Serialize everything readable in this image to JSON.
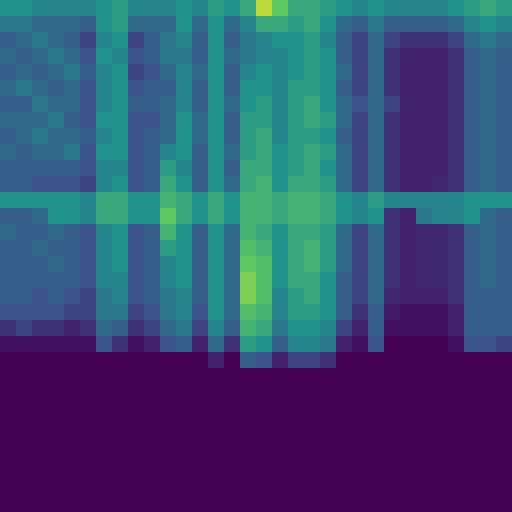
{
  "chart_data": {
    "type": "heatmap",
    "tick_labels": false,
    "zlim": [
      0,
      1
    ],
    "cells": [
      [
        0.5,
        0.5,
        0.45,
        0.45,
        0.45,
        0.45,
        0.5,
        0.55,
        0.45,
        0.45,
        0.45,
        0.5,
        0.45,
        0.55,
        0.5,
        0.6,
        0.9,
        0.75,
        0.6,
        0.6,
        0.55,
        0.5,
        0.45,
        0.5,
        0.45,
        0.45,
        0.45,
        0.45,
        0.5,
        0.55,
        0.6,
        0.55
      ],
      [
        0.4,
        0.4,
        0.35,
        0.35,
        0.35,
        0.3,
        0.5,
        0.55,
        0.35,
        0.35,
        0.35,
        0.5,
        0.35,
        0.5,
        0.35,
        0.45,
        0.6,
        0.6,
        0.55,
        0.6,
        0.5,
        0.35,
        0.3,
        0.4,
        0.3,
        0.3,
        0.3,
        0.3,
        0.35,
        0.45,
        0.5,
        0.45
      ],
      [
        0.3,
        0.35,
        0.4,
        0.35,
        0.3,
        0.2,
        0.45,
        0.5,
        0.2,
        0.3,
        0.4,
        0.45,
        0.3,
        0.5,
        0.3,
        0.4,
        0.45,
        0.5,
        0.5,
        0.55,
        0.45,
        0.3,
        0.2,
        0.35,
        0.2,
        0.15,
        0.15,
        0.15,
        0.2,
        0.35,
        0.4,
        0.35
      ],
      [
        0.35,
        0.3,
        0.35,
        0.4,
        0.35,
        0.25,
        0.5,
        0.45,
        0.25,
        0.3,
        0.4,
        0.4,
        0.3,
        0.5,
        0.35,
        0.4,
        0.45,
        0.45,
        0.5,
        0.55,
        0.5,
        0.3,
        0.2,
        0.35,
        0.15,
        0.1,
        0.1,
        0.1,
        0.15,
        0.3,
        0.35,
        0.3
      ],
      [
        0.3,
        0.35,
        0.3,
        0.35,
        0.4,
        0.3,
        0.45,
        0.5,
        0.2,
        0.25,
        0.35,
        0.45,
        0.35,
        0.5,
        0.3,
        0.45,
        0.5,
        0.45,
        0.5,
        0.55,
        0.5,
        0.35,
        0.2,
        0.35,
        0.15,
        0.1,
        0.1,
        0.1,
        0.15,
        0.3,
        0.35,
        0.3
      ],
      [
        0.35,
        0.4,
        0.35,
        0.3,
        0.35,
        0.25,
        0.45,
        0.5,
        0.25,
        0.3,
        0.3,
        0.45,
        0.3,
        0.5,
        0.3,
        0.5,
        0.5,
        0.45,
        0.55,
        0.55,
        0.5,
        0.3,
        0.2,
        0.35,
        0.15,
        0.1,
        0.1,
        0.1,
        0.15,
        0.3,
        0.35,
        0.3
      ],
      [
        0.3,
        0.3,
        0.4,
        0.35,
        0.35,
        0.25,
        0.45,
        0.5,
        0.3,
        0.3,
        0.35,
        0.45,
        0.3,
        0.5,
        0.35,
        0.5,
        0.55,
        0.45,
        0.55,
        0.6,
        0.5,
        0.35,
        0.25,
        0.35,
        0.2,
        0.1,
        0.1,
        0.1,
        0.15,
        0.3,
        0.35,
        0.3
      ],
      [
        0.35,
        0.35,
        0.35,
        0.4,
        0.3,
        0.25,
        0.5,
        0.5,
        0.25,
        0.25,
        0.35,
        0.5,
        0.35,
        0.5,
        0.3,
        0.55,
        0.55,
        0.45,
        0.55,
        0.6,
        0.55,
        0.35,
        0.2,
        0.35,
        0.15,
        0.1,
        0.1,
        0.1,
        0.15,
        0.3,
        0.35,
        0.3
      ],
      [
        0.3,
        0.35,
        0.4,
        0.35,
        0.35,
        0.3,
        0.45,
        0.5,
        0.25,
        0.3,
        0.35,
        0.5,
        0.35,
        0.5,
        0.3,
        0.55,
        0.6,
        0.45,
        0.55,
        0.55,
        0.5,
        0.3,
        0.2,
        0.35,
        0.15,
        0.1,
        0.1,
        0.1,
        0.15,
        0.3,
        0.35,
        0.3
      ],
      [
        0.35,
        0.3,
        0.35,
        0.35,
        0.4,
        0.25,
        0.5,
        0.5,
        0.25,
        0.3,
        0.45,
        0.5,
        0.3,
        0.5,
        0.35,
        0.55,
        0.6,
        0.5,
        0.55,
        0.6,
        0.55,
        0.35,
        0.2,
        0.35,
        0.15,
        0.1,
        0.1,
        0.1,
        0.15,
        0.3,
        0.35,
        0.3
      ],
      [
        0.3,
        0.3,
        0.3,
        0.3,
        0.3,
        0.25,
        0.45,
        0.45,
        0.25,
        0.3,
        0.55,
        0.45,
        0.3,
        0.5,
        0.3,
        0.6,
        0.6,
        0.5,
        0.55,
        0.6,
        0.5,
        0.35,
        0.2,
        0.35,
        0.15,
        0.1,
        0.1,
        0.1,
        0.15,
        0.3,
        0.35,
        0.3
      ],
      [
        0.3,
        0.3,
        0.25,
        0.25,
        0.25,
        0.2,
        0.45,
        0.5,
        0.25,
        0.3,
        0.6,
        0.5,
        0.3,
        0.5,
        0.35,
        0.6,
        0.65,
        0.5,
        0.6,
        0.6,
        0.55,
        0.35,
        0.2,
        0.35,
        0.15,
        0.1,
        0.1,
        0.12,
        0.15,
        0.3,
        0.35,
        0.3
      ],
      [
        0.5,
        0.5,
        0.5,
        0.5,
        0.5,
        0.45,
        0.6,
        0.6,
        0.5,
        0.5,
        0.65,
        0.6,
        0.5,
        0.6,
        0.5,
        0.65,
        0.65,
        0.6,
        0.65,
        0.65,
        0.6,
        0.5,
        0.45,
        0.55,
        0.45,
        0.45,
        0.45,
        0.45,
        0.45,
        0.5,
        0.5,
        0.5
      ],
      [
        0.3,
        0.3,
        0.35,
        0.5,
        0.5,
        0.45,
        0.6,
        0.6,
        0.5,
        0.5,
        0.75,
        0.6,
        0.5,
        0.6,
        0.5,
        0.65,
        0.65,
        0.6,
        0.65,
        0.65,
        0.6,
        0.5,
        0.45,
        0.5,
        0.15,
        0.1,
        0.4,
        0.45,
        0.45,
        0.5,
        0.35,
        0.3
      ],
      [
        0.35,
        0.3,
        0.3,
        0.35,
        0.3,
        0.25,
        0.45,
        0.5,
        0.25,
        0.3,
        0.65,
        0.5,
        0.3,
        0.5,
        0.35,
        0.65,
        0.6,
        0.5,
        0.6,
        0.6,
        0.55,
        0.35,
        0.2,
        0.35,
        0.15,
        0.1,
        0.12,
        0.12,
        0.15,
        0.3,
        0.35,
        0.3
      ],
      [
        0.3,
        0.3,
        0.35,
        0.3,
        0.3,
        0.25,
        0.45,
        0.5,
        0.25,
        0.3,
        0.55,
        0.5,
        0.3,
        0.5,
        0.35,
        0.7,
        0.65,
        0.5,
        0.6,
        0.65,
        0.55,
        0.35,
        0.2,
        0.35,
        0.15,
        0.1,
        0.12,
        0.12,
        0.15,
        0.3,
        0.35,
        0.3
      ],
      [
        0.3,
        0.3,
        0.3,
        0.35,
        0.3,
        0.25,
        0.45,
        0.5,
        0.25,
        0.3,
        0.45,
        0.5,
        0.3,
        0.5,
        0.35,
        0.75,
        0.7,
        0.5,
        0.6,
        0.65,
        0.55,
        0.35,
        0.2,
        0.35,
        0.15,
        0.1,
        0.12,
        0.12,
        0.15,
        0.3,
        0.35,
        0.3
      ],
      [
        0.3,
        0.3,
        0.3,
        0.3,
        0.3,
        0.25,
        0.45,
        0.45,
        0.25,
        0.3,
        0.45,
        0.5,
        0.3,
        0.5,
        0.35,
        0.8,
        0.7,
        0.5,
        0.6,
        0.6,
        0.5,
        0.3,
        0.2,
        0.35,
        0.15,
        0.1,
        0.12,
        0.12,
        0.15,
        0.3,
        0.35,
        0.3
      ],
      [
        0.3,
        0.3,
        0.25,
        0.3,
        0.25,
        0.2,
        0.4,
        0.45,
        0.25,
        0.3,
        0.4,
        0.45,
        0.3,
        0.5,
        0.35,
        0.8,
        0.7,
        0.45,
        0.55,
        0.6,
        0.5,
        0.3,
        0.2,
        0.35,
        0.12,
        0.1,
        0.1,
        0.1,
        0.15,
        0.3,
        0.3,
        0.3
      ],
      [
        0.25,
        0.25,
        0.25,
        0.25,
        0.2,
        0.2,
        0.4,
        0.4,
        0.2,
        0.25,
        0.4,
        0.45,
        0.25,
        0.5,
        0.35,
        0.7,
        0.65,
        0.45,
        0.55,
        0.55,
        0.5,
        0.3,
        0.15,
        0.3,
        0.08,
        0.05,
        0.05,
        0.05,
        0.1,
        0.3,
        0.3,
        0.3
      ],
      [
        0.15,
        0.2,
        0.15,
        0.15,
        0.1,
        0.15,
        0.35,
        0.3,
        0.15,
        0.2,
        0.35,
        0.4,
        0.2,
        0.45,
        0.3,
        0.65,
        0.6,
        0.4,
        0.5,
        0.5,
        0.45,
        0.2,
        0.1,
        0.3,
        0.05,
        0.05,
        0.05,
        0.05,
        0.1,
        0.3,
        0.3,
        0.3
      ],
      [
        0.05,
        0.05,
        0.05,
        0.05,
        0.05,
        0.05,
        0.25,
        0.15,
        0.05,
        0.1,
        0.25,
        0.3,
        0.1,
        0.35,
        0.15,
        0.55,
        0.5,
        0.3,
        0.45,
        0.45,
        0.4,
        0.1,
        0.05,
        0.25,
        0,
        0,
        0,
        0,
        0.05,
        0.25,
        0.25,
        0.2
      ],
      [
        0,
        0,
        0,
        0,
        0,
        0,
        0,
        0,
        0,
        0,
        0,
        0,
        0,
        0.1,
        0,
        0.3,
        0.25,
        0.1,
        0.2,
        0.2,
        0.15,
        0,
        0,
        0,
        0,
        0,
        0,
        0,
        0,
        0,
        0,
        0
      ],
      [
        0,
        0,
        0,
        0,
        0,
        0,
        0,
        0,
        0,
        0,
        0,
        0,
        0,
        0,
        0,
        0,
        0,
        0,
        0,
        0,
        0,
        0,
        0,
        0,
        0,
        0,
        0,
        0,
        0,
        0,
        0,
        0
      ],
      [
        0,
        0,
        0,
        0,
        0,
        0,
        0,
        0,
        0,
        0,
        0,
        0,
        0,
        0,
        0,
        0,
        0,
        0,
        0,
        0,
        0,
        0,
        0,
        0,
        0,
        0,
        0,
        0,
        0,
        0,
        0,
        0
      ],
      [
        0,
        0,
        0,
        0,
        0,
        0,
        0,
        0,
        0,
        0,
        0,
        0,
        0,
        0,
        0,
        0,
        0,
        0,
        0,
        0,
        0,
        0,
        0,
        0,
        0,
        0,
        0,
        0,
        0,
        0,
        0,
        0
      ],
      [
        0,
        0,
        0,
        0,
        0,
        0,
        0,
        0,
        0,
        0,
        0,
        0,
        0,
        0,
        0,
        0,
        0,
        0,
        0,
        0,
        0,
        0,
        0,
        0,
        0,
        0,
        0,
        0,
        0,
        0,
        0,
        0
      ],
      [
        0,
        0,
        0,
        0,
        0,
        0,
        0,
        0,
        0,
        0,
        0,
        0,
        0,
        0,
        0,
        0,
        0,
        0,
        0,
        0,
        0,
        0,
        0,
        0,
        0,
        0,
        0,
        0,
        0,
        0,
        0,
        0
      ],
      [
        0,
        0,
        0,
        0,
        0,
        0,
        0,
        0,
        0,
        0,
        0,
        0,
        0,
        0,
        0,
        0,
        0,
        0,
        0,
        0,
        0,
        0,
        0,
        0,
        0,
        0,
        0,
        0,
        0,
        0,
        0,
        0
      ],
      [
        0,
        0,
        0,
        0,
        0,
        0,
        0,
        0,
        0,
        0,
        0,
        0,
        0,
        0,
        0,
        0,
        0,
        0,
        0,
        0,
        0,
        0,
        0,
        0,
        0,
        0,
        0,
        0,
        0,
        0,
        0,
        0
      ],
      [
        0,
        0,
        0,
        0,
        0,
        0,
        0,
        0,
        0,
        0,
        0,
        0,
        0,
        0,
        0,
        0,
        0,
        0,
        0,
        0,
        0,
        0,
        0,
        0,
        0,
        0,
        0,
        0,
        0,
        0,
        0,
        0
      ],
      [
        0,
        0,
        0,
        0,
        0,
        0,
        0,
        0,
        0,
        0,
        0,
        0,
        0,
        0,
        0,
        0,
        0,
        0,
        0,
        0,
        0,
        0,
        0,
        0,
        0,
        0,
        0,
        0,
        0,
        0,
        0,
        0
      ]
    ]
  }
}
